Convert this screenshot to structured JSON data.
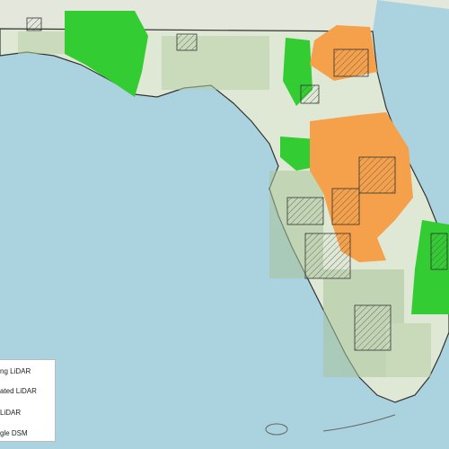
{
  "legend": {
    "items": [
      "ng LiDAR",
      "ated LiDAR",
      "LiDAR",
      "gle DSM"
    ]
  }
}
